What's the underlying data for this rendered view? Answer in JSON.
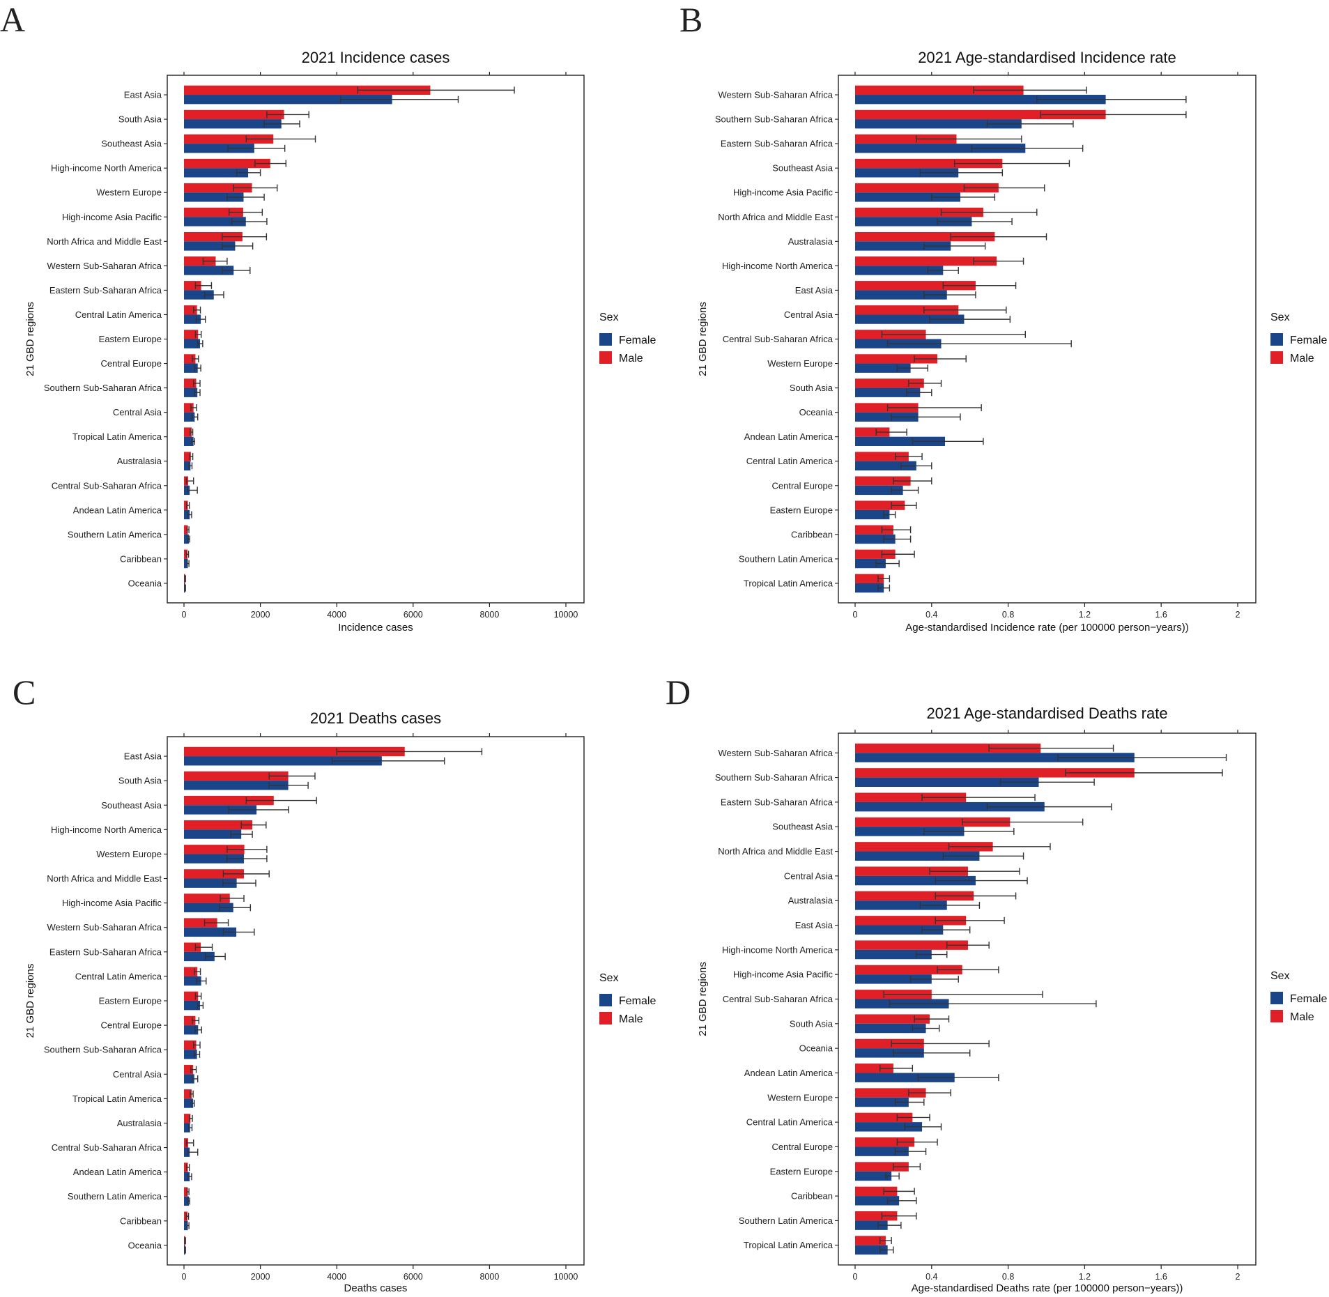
{
  "colors": {
    "female": "#1a4589",
    "male": "#e01f26",
    "errorbar": "#333333",
    "frame": "#222222"
  },
  "legend": {
    "title": "Sex",
    "items": [
      "Female",
      "Male"
    ]
  },
  "chart_data": [
    {
      "panel": "A",
      "type": "bar",
      "title": "2021 Incidence cases",
      "xlabel": "Incidence cases",
      "ylabel": "21 GBD regions",
      "xlim": [
        0,
        10000
      ],
      "xticks": [
        0,
        2000,
        4000,
        6000,
        8000,
        10000
      ],
      "categories": [
        "East Asia",
        "South Asia",
        "Southeast Asia",
        "High-income North America",
        "Western Europe",
        "High-income Asia Pacific",
        "North Africa and Middle East",
        "Western Sub-Saharan Africa",
        "Eastern Sub-Saharan Africa",
        "Central Latin America",
        "Eastern Europe",
        "Central Europe",
        "Southern Sub-Saharan Africa",
        "Central Asia",
        "Tropical Latin America",
        "Australasia",
        "Central Sub-Saharan Africa",
        "Andean Latin America",
        "Southern Latin America",
        "Caribbean",
        "Oceania"
      ],
      "series": [
        {
          "name": "Male",
          "values": [
            6450,
            2620,
            2340,
            2260,
            1780,
            1550,
            1530,
            830,
            450,
            340,
            370,
            300,
            320,
            250,
            200,
            180,
            110,
            100,
            100,
            90,
            30
          ],
          "lower": [
            4550,
            2170,
            1630,
            1860,
            1300,
            1180,
            1000,
            500,
            300,
            250,
            300,
            220,
            250,
            180,
            160,
            150,
            60,
            70,
            80,
            60,
            20
          ],
          "upper": [
            8650,
            3270,
            3440,
            2670,
            2440,
            2050,
            2160,
            1130,
            720,
            430,
            450,
            380,
            420,
            330,
            230,
            230,
            250,
            140,
            130,
            120,
            40
          ]
        },
        {
          "name": "Female",
          "values": [
            5450,
            2550,
            1840,
            1680,
            1560,
            1620,
            1340,
            1300,
            780,
            440,
            420,
            360,
            350,
            280,
            250,
            170,
            150,
            150,
            130,
            100,
            30
          ],
          "lower": [
            4100,
            2100,
            1150,
            1380,
            1130,
            1250,
            1000,
            1000,
            540,
            320,
            360,
            280,
            280,
            210,
            200,
            130,
            100,
            100,
            100,
            80,
            20
          ],
          "upper": [
            7180,
            3030,
            2640,
            2000,
            2100,
            2170,
            1800,
            1730,
            1040,
            560,
            490,
            440,
            420,
            360,
            280,
            210,
            350,
            200,
            150,
            130,
            40
          ]
        }
      ]
    },
    {
      "panel": "B",
      "type": "bar",
      "title": "2021 Age-standardised Incidence rate",
      "xlabel": "Age-standardised Incidence rate (per 100000 person−years))",
      "ylabel": "21 GBD regions",
      "xlim": [
        0,
        2
      ],
      "xticks": [
        "0",
        "0.4",
        "0.8",
        "1.2",
        "1.6",
        "2"
      ],
      "categories": [
        "Western Sub-Saharan Africa",
        "Southern Sub-Saharan Africa",
        "Eastern Sub-Saharan Africa",
        "Southeast Asia",
        "High-income Asia Pacific",
        "North Africa and Middle East",
        "Australasia",
        "High-income North America",
        "East Asia",
        "Central Asia",
        "Central Sub-Saharan Africa",
        "Western Europe",
        "South Asia",
        "Oceania",
        "Andean Latin America",
        "Central Latin America",
        "Central Europe",
        "Eastern Europe",
        "Caribbean",
        "Southern Latin America",
        "Tropical Latin America"
      ],
      "series": [
        {
          "name": "Male",
          "values": [
            0.88,
            1.31,
            0.53,
            0.77,
            0.75,
            0.67,
            0.73,
            0.74,
            0.63,
            0.54,
            0.37,
            0.43,
            0.36,
            0.33,
            0.18,
            0.28,
            0.29,
            0.26,
            0.2,
            0.21,
            0.15
          ],
          "lower": [
            0.62,
            0.97,
            0.32,
            0.52,
            0.57,
            0.45,
            0.5,
            0.62,
            0.46,
            0.36,
            0.14,
            0.31,
            0.28,
            0.17,
            0.11,
            0.21,
            0.2,
            0.19,
            0.14,
            0.14,
            0.12
          ],
          "upper": [
            1.21,
            1.73,
            0.87,
            1.12,
            0.99,
            0.95,
            1.0,
            0.88,
            0.84,
            0.79,
            0.89,
            0.58,
            0.45,
            0.66,
            0.27,
            0.35,
            0.4,
            0.32,
            0.29,
            0.31,
            0.18
          ]
        },
        {
          "name": "Female",
          "values": [
            1.31,
            0.87,
            0.89,
            0.54,
            0.55,
            0.61,
            0.5,
            0.46,
            0.48,
            0.57,
            0.45,
            0.29,
            0.34,
            0.33,
            0.47,
            0.32,
            0.25,
            0.18,
            0.21,
            0.16,
            0.15
          ],
          "lower": [
            0.95,
            0.69,
            0.61,
            0.34,
            0.4,
            0.43,
            0.36,
            0.38,
            0.36,
            0.39,
            0.17,
            0.22,
            0.27,
            0.19,
            0.3,
            0.24,
            0.19,
            0.15,
            0.15,
            0.11,
            0.12
          ],
          "upper": [
            1.73,
            1.14,
            1.19,
            0.77,
            0.73,
            0.82,
            0.68,
            0.54,
            0.63,
            0.81,
            1.13,
            0.38,
            0.4,
            0.55,
            0.67,
            0.4,
            0.33,
            0.21,
            0.29,
            0.23,
            0.18
          ]
        }
      ]
    },
    {
      "panel": "C",
      "type": "bar",
      "title": "2021 Deaths cases",
      "xlabel": "Deaths cases",
      "ylabel": "21 GBD regions",
      "xlim": [
        0,
        10000
      ],
      "xticks": [
        0,
        2000,
        4000,
        6000,
        8000,
        10000
      ],
      "categories": [
        "East Asia",
        "South Asia",
        "Southeast Asia",
        "High-income North America",
        "Western Europe",
        "North Africa and Middle East",
        "High-income Asia Pacific",
        "Western Sub-Saharan Africa",
        "Eastern Sub-Saharan Africa",
        "Central Latin America",
        "Eastern Europe",
        "Central Europe",
        "Southern Sub-Saharan Africa",
        "Central Asia",
        "Tropical Latin America",
        "Australasia",
        "Central Sub-Saharan Africa",
        "Andean Latin America",
        "Southern Latin America",
        "Caribbean",
        "Oceania"
      ],
      "series": [
        {
          "name": "Male",
          "values": [
            5780,
            2730,
            2350,
            1790,
            1580,
            1570,
            1200,
            870,
            440,
            350,
            370,
            300,
            320,
            240,
            200,
            170,
            110,
            100,
            100,
            90,
            30
          ],
          "lower": [
            4000,
            2230,
            1630,
            1500,
            1130,
            1030,
            950,
            540,
            300,
            270,
            300,
            220,
            250,
            180,
            160,
            140,
            60,
            70,
            80,
            60,
            20
          ],
          "upper": [
            7800,
            3430,
            3470,
            2150,
            2170,
            2230,
            1570,
            1160,
            740,
            430,
            450,
            390,
            420,
            320,
            240,
            220,
            250,
            140,
            130,
            120,
            40
          ]
        },
        {
          "name": "Female",
          "values": [
            5180,
            2730,
            1900,
            1500,
            1570,
            1380,
            1290,
            1370,
            800,
            450,
            420,
            370,
            340,
            270,
            240,
            160,
            150,
            150,
            130,
            100,
            30
          ],
          "lower": [
            3880,
            2230,
            1170,
            1230,
            1120,
            1020,
            930,
            1030,
            560,
            330,
            360,
            290,
            270,
            210,
            190,
            120,
            100,
            100,
            100,
            80,
            20
          ],
          "upper": [
            6820,
            3250,
            2740,
            1790,
            2170,
            1880,
            1740,
            1840,
            1080,
            580,
            500,
            460,
            410,
            360,
            270,
            210,
            360,
            200,
            150,
            130,
            40
          ]
        }
      ]
    },
    {
      "panel": "D",
      "type": "bar",
      "title": "2021 Age-standardised Deaths rate",
      "xlabel": "Age-standardised Deaths rate (per 100000 person−years))",
      "ylabel": "21 GBD regions",
      "xlim": [
        0,
        2
      ],
      "xticks": [
        "0",
        "0.4",
        "0.8",
        "1.2",
        "1.6",
        "2"
      ],
      "categories": [
        "Western Sub-Saharan Africa",
        "Southern Sub-Saharan Africa",
        "Eastern Sub-Saharan Africa",
        "Southeast Asia",
        "North Africa and Middle East",
        "Central Asia",
        "Australasia",
        "East Asia",
        "High-income North America",
        "High-income Asia Pacific",
        "Central Sub-Saharan Africa",
        "South Asia",
        "Oceania",
        "Andean Latin America",
        "Western Europe",
        "Central Latin America",
        "Central Europe",
        "Eastern Europe",
        "Caribbean",
        "Southern Latin America",
        "Tropical Latin America"
      ],
      "series": [
        {
          "name": "Male",
          "values": [
            0.97,
            1.46,
            0.58,
            0.81,
            0.72,
            0.59,
            0.62,
            0.58,
            0.59,
            0.56,
            0.4,
            0.39,
            0.36,
            0.2,
            0.37,
            0.3,
            0.31,
            0.28,
            0.22,
            0.22,
            0.16
          ],
          "lower": [
            0.7,
            1.1,
            0.35,
            0.56,
            0.49,
            0.39,
            0.42,
            0.42,
            0.48,
            0.43,
            0.15,
            0.31,
            0.19,
            0.13,
            0.28,
            0.22,
            0.22,
            0.2,
            0.15,
            0.14,
            0.13
          ],
          "upper": [
            1.35,
            1.92,
            0.94,
            1.19,
            1.02,
            0.86,
            0.84,
            0.78,
            0.7,
            0.75,
            0.98,
            0.49,
            0.7,
            0.3,
            0.5,
            0.39,
            0.43,
            0.34,
            0.31,
            0.32,
            0.19
          ]
        },
        {
          "name": "Female",
          "values": [
            1.46,
            0.96,
            0.99,
            0.57,
            0.65,
            0.63,
            0.48,
            0.46,
            0.4,
            0.4,
            0.49,
            0.37,
            0.36,
            0.52,
            0.28,
            0.35,
            0.28,
            0.19,
            0.23,
            0.17,
            0.17
          ],
          "lower": [
            1.06,
            0.76,
            0.69,
            0.36,
            0.46,
            0.42,
            0.34,
            0.35,
            0.32,
            0.29,
            0.18,
            0.3,
            0.2,
            0.33,
            0.21,
            0.26,
            0.21,
            0.16,
            0.17,
            0.12,
            0.13
          ],
          "upper": [
            1.94,
            1.25,
            1.34,
            0.83,
            0.88,
            0.9,
            0.65,
            0.6,
            0.48,
            0.54,
            1.26,
            0.44,
            0.6,
            0.75,
            0.36,
            0.45,
            0.37,
            0.23,
            0.32,
            0.24,
            0.2
          ]
        }
      ]
    }
  ]
}
